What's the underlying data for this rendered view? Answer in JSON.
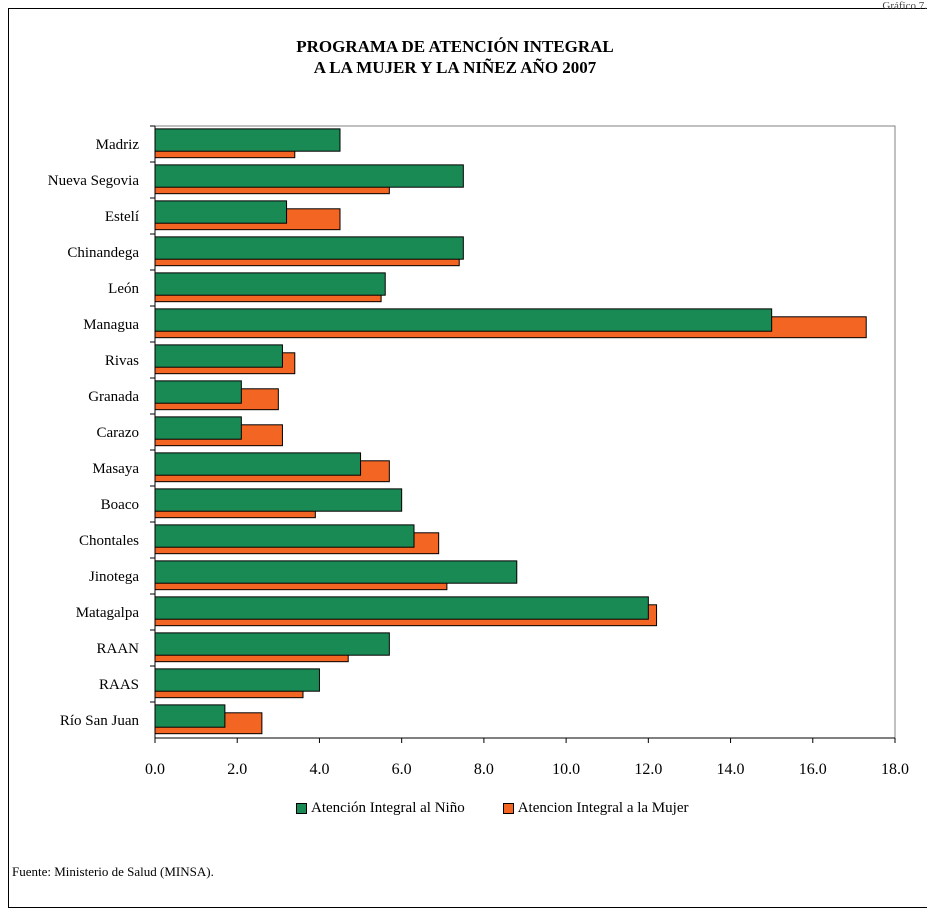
{
  "page": {
    "corner_text": "Gráfico 7.",
    "source": "Fuente: Ministerio de Salud (MINSA)."
  },
  "chart_data": {
    "type": "bar",
    "orientation": "horizontal",
    "title_lines": [
      "PROGRAMA DE ATENCIÓN INTEGRAL",
      "A LA MUJER Y LA NIÑEZ AÑO 2007"
    ],
    "categories": [
      "Madriz",
      "Nueva Segovia",
      "Estelí",
      "Chinandega",
      "León",
      "Managua",
      "Rivas",
      "Granada",
      "Carazo",
      "Masaya",
      "Boaco",
      "Chontales",
      "Jinotega",
      "Matagalpa",
      "RAAN",
      "RAAS",
      "Río San Juan"
    ],
    "series": [
      {
        "name": "Atención Integral al Niño",
        "color": "#1a8a55",
        "values": [
          4.5,
          7.5,
          3.2,
          7.5,
          5.6,
          15.0,
          3.1,
          2.1,
          2.1,
          5.0,
          6.0,
          6.3,
          8.8,
          12.0,
          5.7,
          4.0,
          1.7
        ]
      },
      {
        "name": "Atencion Integral a la Mujer",
        "color": "#f26522",
        "values": [
          3.4,
          5.7,
          4.5,
          7.4,
          5.5,
          17.3,
          3.4,
          3.0,
          3.1,
          5.7,
          3.9,
          6.9,
          7.1,
          12.2,
          4.7,
          3.6,
          2.6
        ]
      }
    ],
    "xlim": [
      0,
      18
    ],
    "xticks": [
      "0.0",
      "2.0",
      "4.0",
      "6.0",
      "8.0",
      "10.0",
      "12.0",
      "14.0",
      "16.0",
      "18.0"
    ],
    "legend_position": "bottom",
    "grid": false
  }
}
